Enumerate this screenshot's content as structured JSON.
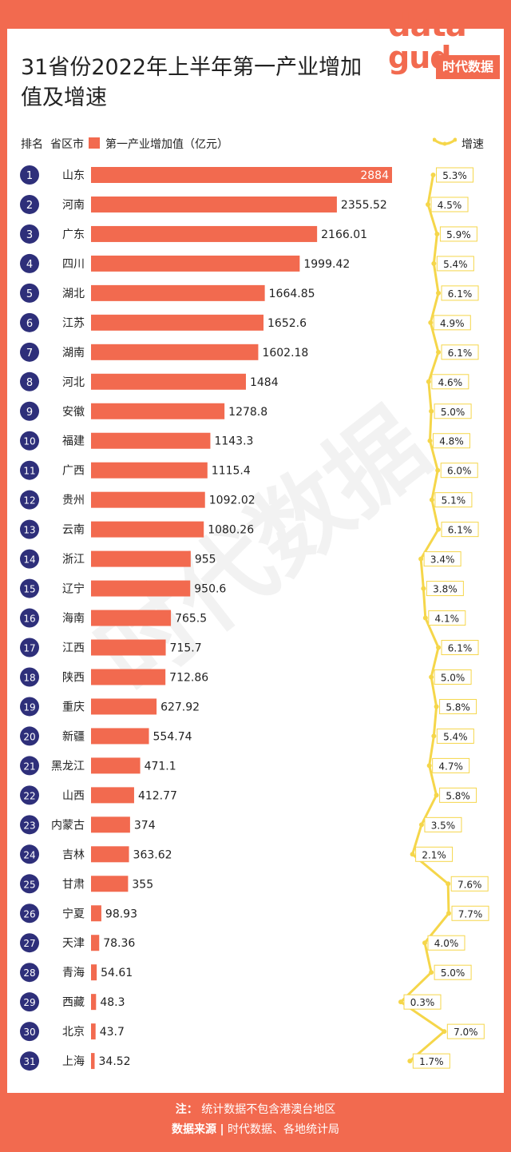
{
  "title": "31省份2022年上半年第一产业增加值及增速",
  "logo": {
    "word": "data",
    "word2": "gud",
    "brand": "时代数据"
  },
  "watermark": "时代数据",
  "header": {
    "rank": "排名",
    "province": "省区市",
    "value_label": "第一产业增加值（亿元）",
    "speed_label": "增速"
  },
  "colors": {
    "bar": "#f26a4f",
    "rank_circle": "#2e2f7a",
    "growth_line": "#f5d64a",
    "background": "#f26a4f"
  },
  "footer": {
    "note_label": "注：",
    "note_text": "统计数据不包含港澳台地区",
    "source_label": "数据来源",
    "separator": "|",
    "source_text": "时代数据、各地统计局"
  },
  "chart_data": {
    "type": "bar",
    "title": "31省份2022年上半年第一产业增加值及增速",
    "xlabel": "第一产业增加值（亿元）",
    "ylabel": "省区市",
    "xlim": [
      0,
      2884
    ],
    "categories": [
      "山东",
      "河南",
      "广东",
      "四川",
      "湖北",
      "江苏",
      "湖南",
      "河北",
      "安徽",
      "福建",
      "广西",
      "贵州",
      "云南",
      "浙江",
      "辽宁",
      "海南",
      "江西",
      "陕西",
      "重庆",
      "新疆",
      "黑龙江",
      "山西",
      "内蒙古",
      "吉林",
      "甘肃",
      "宁夏",
      "天津",
      "青海",
      "西藏",
      "北京",
      "上海"
    ],
    "ranks": [
      "1",
      "2",
      "3",
      "4",
      "5",
      "6",
      "7",
      "8",
      "9",
      "10",
      "11",
      "12",
      "13",
      "14",
      "15",
      "16",
      "17",
      "18",
      "19",
      "20",
      "21",
      "22",
      "23",
      "24",
      "25",
      "26",
      "27",
      "28",
      "29",
      "30",
      "31"
    ],
    "values": [
      2884,
      2355.52,
      2166.01,
      1999.42,
      1664.85,
      1652.6,
      1602.18,
      1484,
      1278.8,
      1143.3,
      1115.4,
      1092.02,
      1080.26,
      955,
      950.6,
      765.5,
      715.7,
      712.86,
      627.92,
      554.74,
      471.1,
      412.77,
      374,
      363.62,
      355,
      98.93,
      78.36,
      54.61,
      48.3,
      43.7,
      34.52
    ],
    "value_labels": [
      "2884",
      "2355.52",
      "2166.01",
      "1999.42",
      "1664.85",
      "1652.6",
      "1602.18",
      "1484",
      "1278.8",
      "1143.3",
      "1115.4",
      "1092.02",
      "1080.26",
      "955",
      "950.6",
      "765.5",
      "715.7",
      "712.86",
      "627.92",
      "554.74",
      "471.1",
      "412.77",
      "374",
      "363.62",
      "355",
      "98.93",
      "78.36",
      "54.61",
      "48.3",
      "43.7",
      "34.52"
    ],
    "growth": [
      5.3,
      4.5,
      5.9,
      5.4,
      6.1,
      4.9,
      6.1,
      4.6,
      5.0,
      4.8,
      6.0,
      5.1,
      6.1,
      3.4,
      3.8,
      4.1,
      6.1,
      5.0,
      5.8,
      5.4,
      4.7,
      5.8,
      3.5,
      2.1,
      7.6,
      7.7,
      4.0,
      5.0,
      0.3,
      7.0,
      1.7
    ],
    "growth_labels": [
      "5.3%",
      "4.5%",
      "5.9%",
      "5.4%",
      "6.1%",
      "4.9%",
      "6.1%",
      "4.6%",
      "5.0%",
      "4.8%",
      "6.0%",
      "5.1%",
      "6.1%",
      "3.4%",
      "3.8%",
      "4.1%",
      "6.1%",
      "5.0%",
      "5.8%",
      "5.4%",
      "4.7%",
      "5.8%",
      "3.5%",
      "2.1%",
      "7.6%",
      "7.7%",
      "4.0%",
      "5.0%",
      "0.3%",
      "7.0%",
      "1.7%"
    ],
    "growth_range": [
      0.3,
      7.7
    ]
  }
}
